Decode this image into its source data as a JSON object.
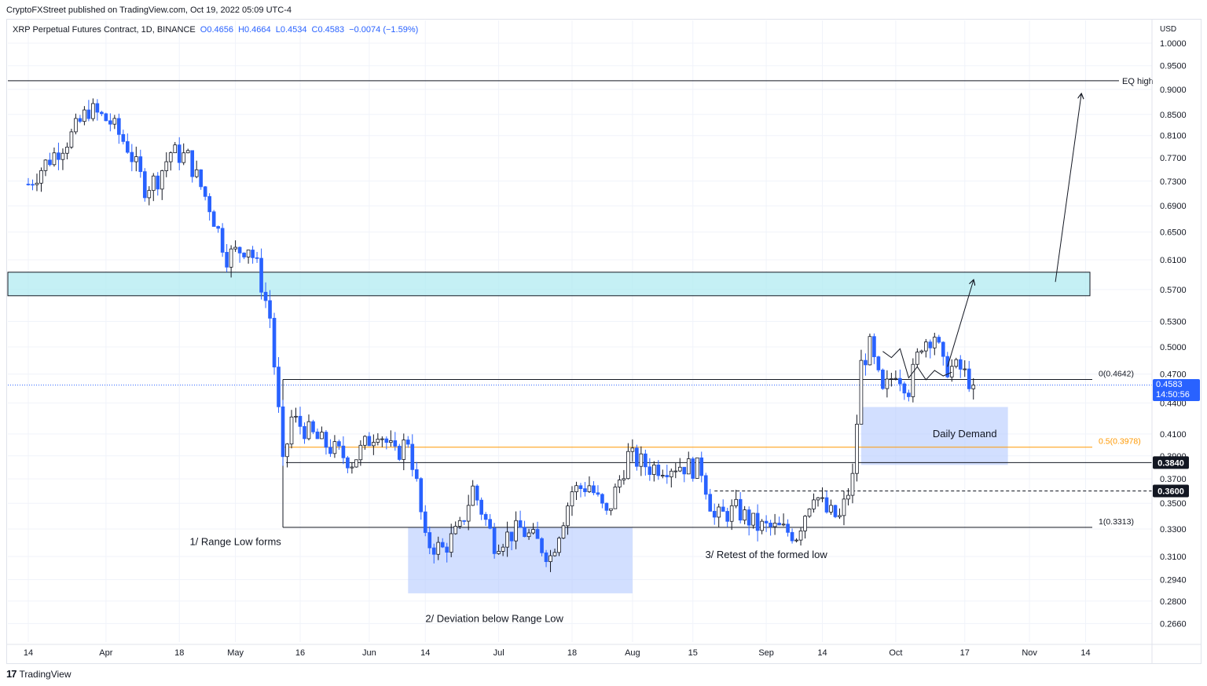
{
  "header": {
    "publisher": "CryptoFXStreet published on TradingView.com, Oct 19, 2022 05:09 UTC-4",
    "symbol": "XRP Perpetual Futures Contract, 1D, BINANCE",
    "open": "O0.4656",
    "high": "H0.4664",
    "low": "L0.4534",
    "close": "C0.4583",
    "change": "−0.0074 (−1.59%)"
  },
  "price_axis": {
    "currency": "USD",
    "last_price": "0.4583",
    "countdown": "14:50:56",
    "marked_levels": [
      "0.3840",
      "0.3600"
    ]
  },
  "footer": {
    "brand": "TradingView"
  },
  "colors": {
    "bull": "#ffffff",
    "bear": "#2962ff",
    "wick": "#131722",
    "supply_zone": "#b2ebf2",
    "demand_zone": "#b4c9ff",
    "fib_mid": "#ff9800"
  },
  "chart_data": {
    "type": "candlestick",
    "y_scale": "log",
    "ylim": [
      0.255,
      1.02
    ],
    "y_ticks": [
      "1.0000",
      "0.9500",
      "0.9000",
      "0.8500",
      "0.8100",
      "0.7700",
      "0.7300",
      "0.6900",
      "0.6500",
      "0.6100",
      "0.5700",
      "0.5300",
      "0.5000",
      "0.4700",
      "0.4400",
      "0.4100",
      "0.3900",
      "0.3700",
      "0.3500",
      "0.3300",
      "0.3100",
      "0.2940",
      "0.2800",
      "0.2660"
    ],
    "x_range": [
      "2022-03-14",
      "2022-11-17"
    ],
    "x_ticks": [
      {
        "label": "14",
        "date": "2022-03-14"
      },
      {
        "label": "Apr",
        "date": "2022-04-01"
      },
      {
        "label": "18",
        "date": "2022-04-18"
      },
      {
        "label": "May",
        "date": "2022-05-01"
      },
      {
        "label": "16",
        "date": "2022-05-16"
      },
      {
        "label": "Jun",
        "date": "2022-06-01"
      },
      {
        "label": "14",
        "date": "2022-06-14"
      },
      {
        "label": "Jul",
        "date": "2022-07-01"
      },
      {
        "label": "18",
        "date": "2022-07-18"
      },
      {
        "label": "Aug",
        "date": "2022-08-01"
      },
      {
        "label": "15",
        "date": "2022-08-15"
      },
      {
        "label": "Sep",
        "date": "2022-09-01"
      },
      {
        "label": "14",
        "date": "2022-09-14"
      },
      {
        "label": "Oct",
        "date": "2022-10-01"
      },
      {
        "label": "17",
        "date": "2022-10-17"
      },
      {
        "label": "Nov",
        "date": "2022-11-01"
      },
      {
        "label": "14",
        "date": "2022-11-14"
      }
    ],
    "anchors": [
      [
        "2022-03-14",
        0.725
      ],
      [
        "2022-03-18",
        0.76
      ],
      [
        "2022-03-24",
        0.81
      ],
      [
        "2022-03-28",
        0.86
      ],
      [
        "2022-04-02",
        0.835
      ],
      [
        "2022-04-06",
        0.79
      ],
      [
        "2022-04-10",
        0.72
      ],
      [
        "2022-04-13",
        0.735
      ],
      [
        "2022-04-16",
        0.78
      ],
      [
        "2022-04-20",
        0.77
      ],
      [
        "2022-04-25",
        0.69
      ],
      [
        "2022-04-29",
        0.615
      ],
      [
        "2022-05-04",
        0.63
      ],
      [
        "2022-05-06",
        0.6
      ],
      [
        "2022-05-09",
        0.535
      ],
      [
        "2022-05-11",
        0.43
      ],
      [
        "2022-05-12",
        0.38
      ],
      [
        "2022-05-14",
        0.425
      ],
      [
        "2022-05-20",
        0.405
      ],
      [
        "2022-05-28",
        0.385
      ],
      [
        "2022-06-03",
        0.415
      ],
      [
        "2022-06-07",
        0.39
      ],
      [
        "2022-06-10",
        0.405
      ],
      [
        "2022-06-12",
        0.365
      ],
      [
        "2022-06-14",
        0.32
      ],
      [
        "2022-06-18",
        0.315
      ],
      [
        "2022-06-22",
        0.33
      ],
      [
        "2022-06-25",
        0.362
      ],
      [
        "2022-06-30",
        0.32
      ],
      [
        "2022-07-06",
        0.33
      ],
      [
        "2022-07-10",
        0.32
      ],
      [
        "2022-07-13",
        0.31
      ],
      [
        "2022-07-18",
        0.36
      ],
      [
        "2022-07-22",
        0.365
      ],
      [
        "2022-07-26",
        0.34
      ],
      [
        "2022-07-31",
        0.39
      ],
      [
        "2022-08-05",
        0.38
      ],
      [
        "2022-08-12",
        0.382
      ],
      [
        "2022-08-17",
        0.378
      ],
      [
        "2022-08-20",
        0.338
      ],
      [
        "2022-08-25",
        0.345
      ],
      [
        "2022-08-30",
        0.332
      ],
      [
        "2022-09-04",
        0.33
      ],
      [
        "2022-09-08",
        0.326
      ],
      [
        "2022-09-12",
        0.36
      ],
      [
        "2022-09-15",
        0.343
      ],
      [
        "2022-09-18",
        0.338
      ],
      [
        "2022-09-21",
        0.37
      ],
      [
        "2022-09-23",
        0.48
      ],
      [
        "2022-09-25",
        0.5
      ],
      [
        "2022-09-28",
        0.448
      ],
      [
        "2022-10-01",
        0.475
      ],
      [
        "2022-10-04",
        0.455
      ],
      [
        "2022-10-07",
        0.505
      ],
      [
        "2022-10-10",
        0.515
      ],
      [
        "2022-10-12",
        0.478
      ],
      [
        "2022-10-16",
        0.475
      ],
      [
        "2022-10-19",
        0.4583
      ]
    ],
    "levels": [
      {
        "name": "EQ high",
        "price": 0.918
      },
      {
        "name": "0(0.4642)",
        "price": 0.4642
      },
      {
        "name": "0.5(0.3978)",
        "price": 0.3978
      },
      {
        "name": "1(0.3313)",
        "price": 0.3313
      },
      {
        "name": "0.3840",
        "price": 0.384
      },
      {
        "name": "0.3600",
        "price": 0.36
      }
    ],
    "zones": [
      {
        "name": "",
        "from": "2022-03-14",
        "to": "2022-11-15",
        "top": 0.593,
        "bottom": 0.562
      },
      {
        "name": "Daily Demand",
        "from": "2022-09-23",
        "to": "2022-10-27",
        "top": 0.436,
        "bottom": 0.382
      },
      {
        "name": "",
        "from": "2022-06-10",
        "to": "2022-08-01",
        "top": 0.3313,
        "bottom": 0.285
      }
    ],
    "annotations": [
      {
        "text": "1/ Range Low forms",
        "date": "2022-05-01",
        "price": 0.318
      },
      {
        "text": "2/ Deviation below Range Low",
        "date": "2022-06-30",
        "price": 0.267
      },
      {
        "text": "3/ Retest of the formed low",
        "date": "2022-09-01",
        "price": 0.309
      },
      {
        "text": "Daily Demand",
        "date": "2022-10-17",
        "price": 0.407
      }
    ]
  }
}
